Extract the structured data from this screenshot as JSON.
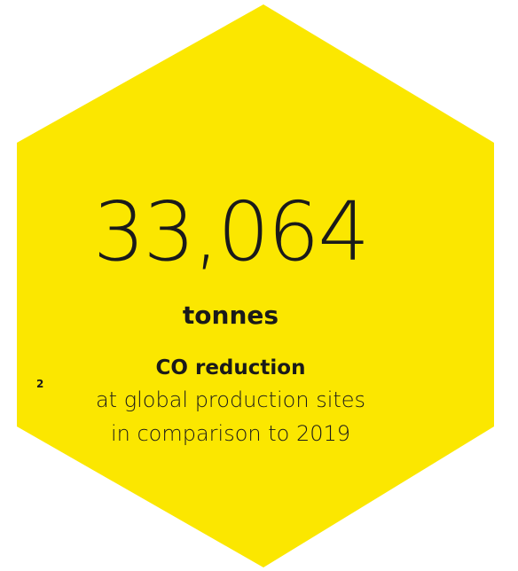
{
  "stat": {
    "value": "33,064",
    "unit": "tonnes",
    "subscript": "2",
    "heading": "CO reduction",
    "description_line1": "at global production sites",
    "description_line2": "in comparison to 2019"
  },
  "colors": {
    "hexagon_fill": "#fbe700",
    "text": "#1a1a1a",
    "background": "#ffffff"
  }
}
